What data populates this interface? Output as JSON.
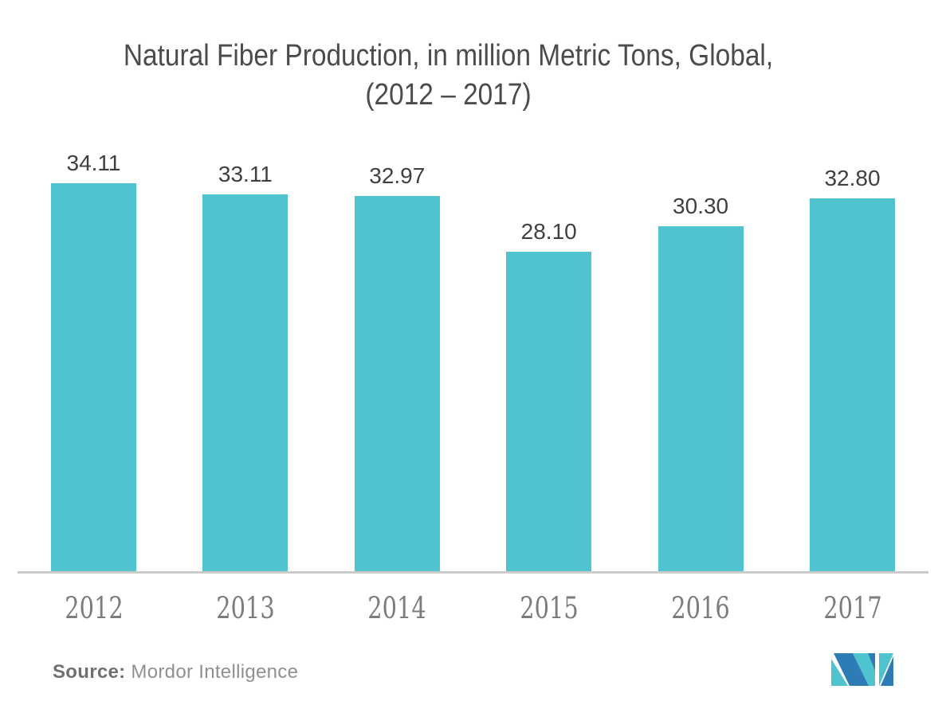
{
  "title": {
    "line1": "Natural Fiber Production, in million Metric Tons, Global,",
    "line2": "(2012 – 2017)"
  },
  "source": {
    "label": "Source:",
    "name": " Mordor Intelligence"
  },
  "logo": {
    "name": "mordor-intelligence-logo"
  },
  "colors": {
    "bar": "#4fc3ce",
    "axis": "#cbccca",
    "title_text": "#4b4b4e",
    "value_label_text": "#3f4043",
    "x_label_text": "#7c7c7e",
    "logo_blue": "#2e7cb5",
    "logo_teal": "#4fc3ce"
  },
  "chart_data": {
    "type": "bar",
    "title": "Natural Fiber Production, in million Metric Tons, Global, (2012 – 2017)",
    "categories": [
      "2012",
      "2013",
      "2014",
      "2015",
      "2016",
      "2017"
    ],
    "values": [
      34.11,
      33.11,
      32.97,
      28.1,
      30.3,
      32.8
    ],
    "value_labels": [
      "34.11",
      "33.11",
      "32.97",
      "28.10",
      "30.30",
      "32.80"
    ],
    "series_name": "Natural Fiber Production (million Metric Tons)",
    "xlabel": "",
    "ylabel": "",
    "ylim": [
      0,
      38
    ],
    "grid": false,
    "legend": "none",
    "bar_color": "#4fc3ce",
    "data_labels": "above bars"
  }
}
